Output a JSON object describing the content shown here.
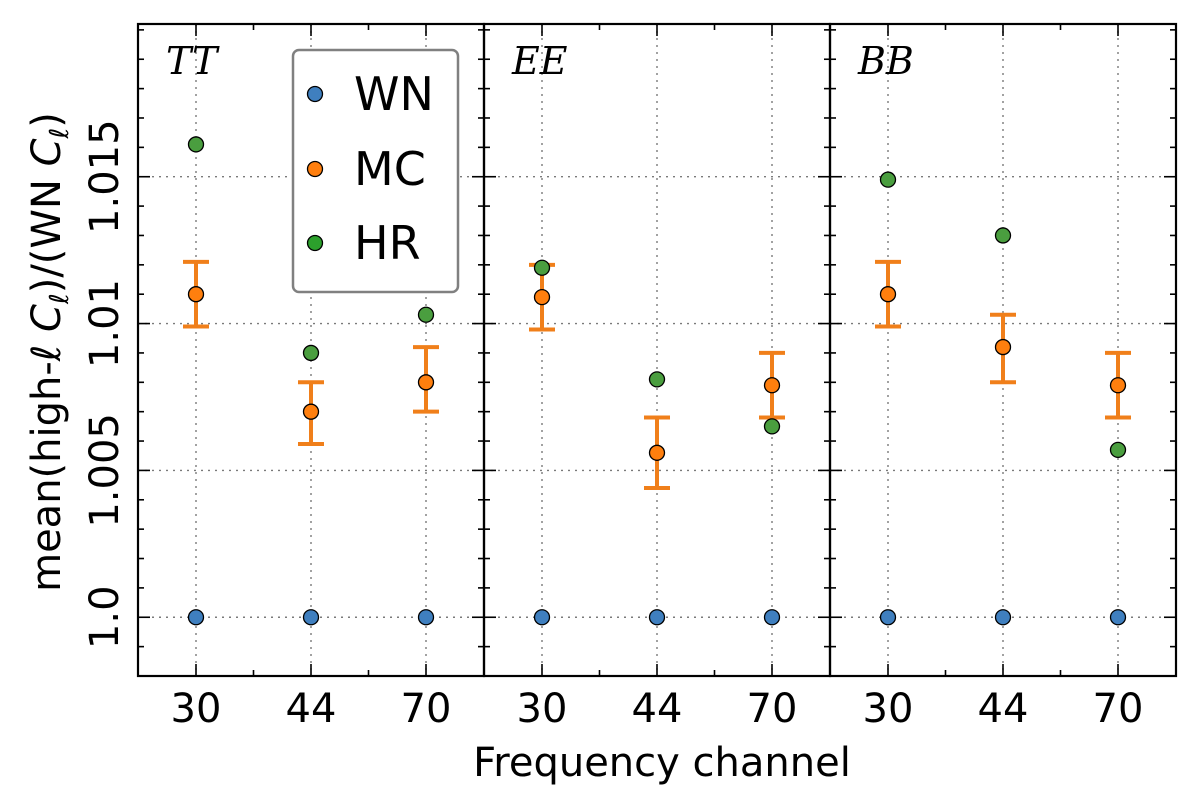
{
  "chart_data": {
    "type": "scatter",
    "xlabel": "Frequency channel",
    "ylabel": "mean(high-ℓ C_ℓ)/(WN C_ℓ)",
    "ylabel_parts": {
      "a": "mean(high-",
      "ell": "ℓ",
      "C": "C",
      "sub": "ℓ",
      "b": ")/(WN ",
      "sub2": "ℓ",
      "close": ")"
    },
    "ylim": [
      0.998,
      1.0202
    ],
    "yticks": [
      1.0,
      1.005,
      1.01,
      1.015
    ],
    "ytick_labels": [
      "1.0",
      "1.005",
      "1.01",
      "1.015"
    ],
    "ytick_minor_step": 0.001,
    "categories": [
      "30",
      "44",
      "70"
    ],
    "grid": true,
    "legend": {
      "placement": "upper-middle of first panel",
      "entries": [
        {
          "name": "WN",
          "color": "#3f7fbf"
        },
        {
          "name": "MC",
          "color": "#ff7f0e"
        },
        {
          "name": "HR",
          "color": "#2ca02c"
        }
      ]
    },
    "colors": {
      "WN": "#3f7fbf",
      "MC": "#ff7f0e",
      "HR": "#4a9e3f",
      "errorbar": "#f07f1a"
    },
    "panels": [
      {
        "title": "TT",
        "series": [
          {
            "name": "WN",
            "values": [
              1.0,
              1.0,
              1.0
            ]
          },
          {
            "name": "MC",
            "values": [
              1.011,
              1.007,
              1.008
            ],
            "err_low": [
              1.0099,
              1.0059,
              1.007
            ],
            "err_high": [
              1.0121,
              1.008,
              1.0092
            ]
          },
          {
            "name": "HR",
            "values": [
              1.0161,
              1.009,
              1.0103
            ]
          }
        ]
      },
      {
        "title": "EE",
        "series": [
          {
            "name": "WN",
            "values": [
              1.0,
              1.0,
              1.0
            ]
          },
          {
            "name": "MC",
            "values": [
              1.0109,
              1.0056,
              1.0079
            ],
            "err_low": [
              1.0098,
              1.0044,
              1.0068
            ],
            "err_high": [
              1.012,
              1.0068,
              1.009
            ]
          },
          {
            "name": "HR",
            "values": [
              1.0119,
              1.0081,
              1.0065
            ]
          }
        ]
      },
      {
        "title": "BB",
        "series": [
          {
            "name": "WN",
            "values": [
              1.0,
              1.0,
              1.0
            ]
          },
          {
            "name": "MC",
            "values": [
              1.011,
              1.0092,
              1.0079
            ],
            "err_low": [
              1.0099,
              1.008,
              1.0068
            ],
            "err_high": [
              1.0121,
              1.0103,
              1.009
            ]
          },
          {
            "name": "HR",
            "values": [
              1.0149,
              1.013,
              1.0057
            ]
          }
        ]
      }
    ]
  }
}
